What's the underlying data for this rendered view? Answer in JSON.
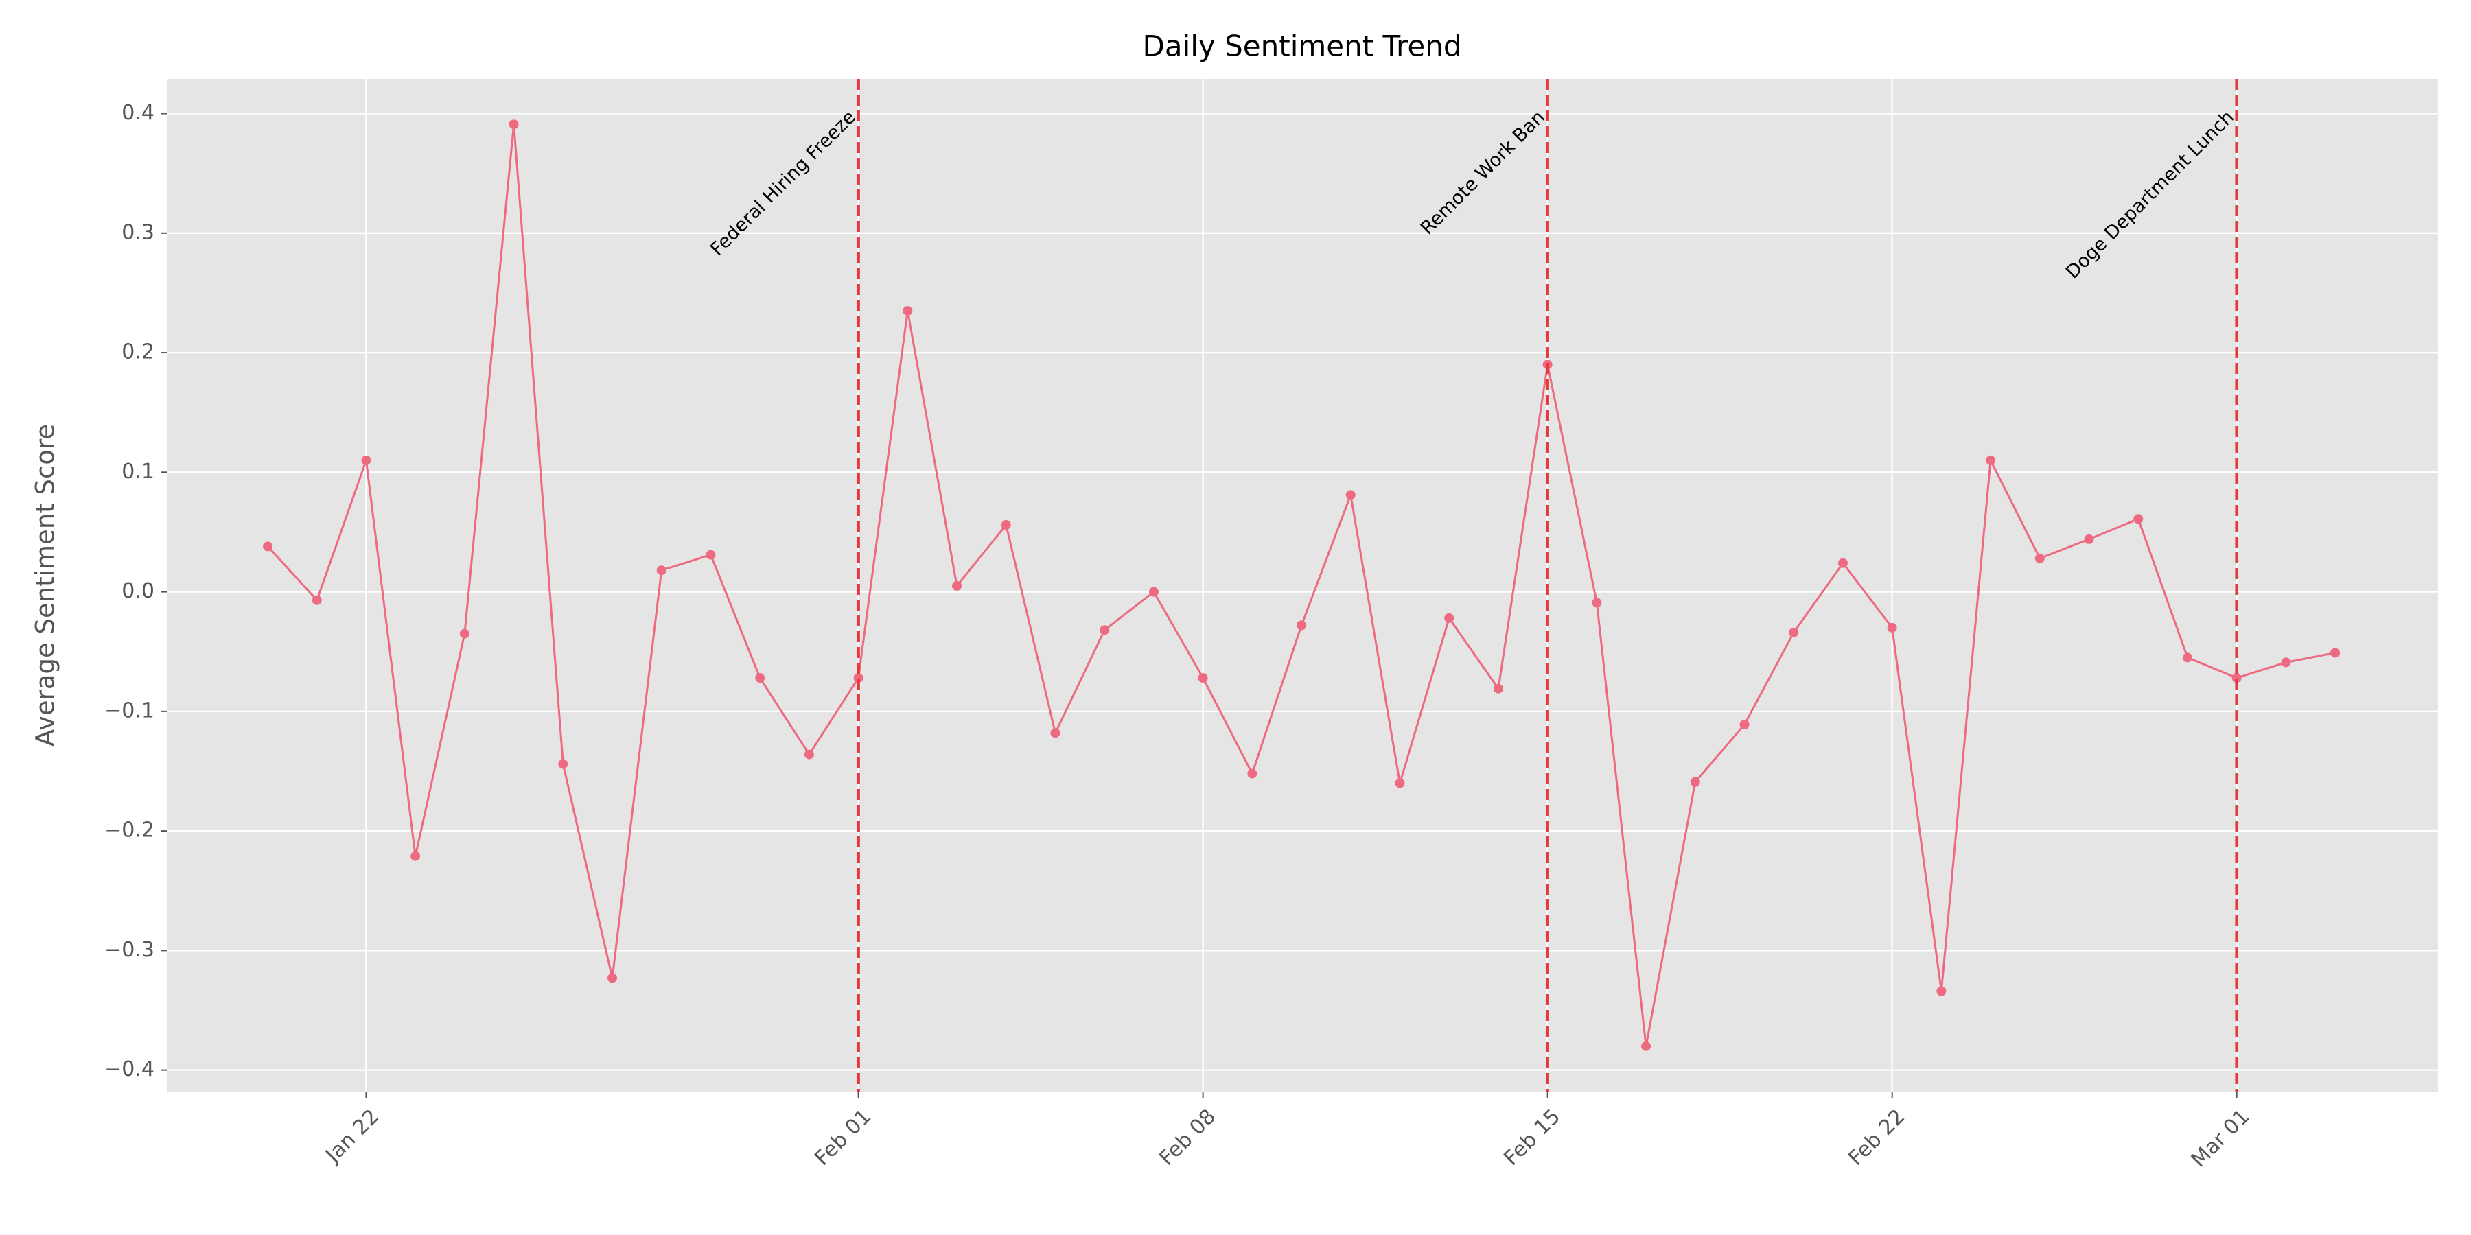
{
  "chart_data": {
    "type": "line",
    "title": "Daily Sentiment Trend",
    "y_label": "Average Sentiment Score",
    "categories": [
      null,
      null,
      "Jan 22",
      null,
      null,
      null,
      null,
      null,
      null,
      null,
      null,
      null,
      "Feb 01",
      null,
      null,
      null,
      null,
      null,
      null,
      "Feb 08",
      null,
      null,
      null,
      null,
      null,
      null,
      "Feb 15",
      null,
      null,
      null,
      null,
      null,
      null,
      "Feb 22",
      null,
      null,
      null,
      null,
      null,
      null,
      "Mar 01",
      null,
      null
    ],
    "series": [
      {
        "name": "Average Sentiment Score",
        "color": "#ee6a80",
        "values": [
          0.038,
          -0.007,
          0.11,
          -0.221,
          -0.035,
          0.391,
          -0.144,
          -0.323,
          0.018,
          0.031,
          -0.072,
          -0.136,
          -0.072,
          0.235,
          0.005,
          0.056,
          -0.118,
          -0.032,
          0.0,
          -0.072,
          -0.152,
          -0.028,
          0.081,
          -0.16,
          -0.022,
          -0.081,
          0.19,
          -0.009,
          -0.38,
          -0.159,
          -0.111,
          -0.034,
          0.024,
          -0.03,
          -0.334,
          0.11,
          0.028,
          0.044,
          0.061,
          -0.055,
          -0.072,
          -0.059,
          -0.051
        ]
      }
    ],
    "ylim": [
      -0.418,
      0.429
    ],
    "yticks": [
      {
        "value": -0.4,
        "label": "−0.4"
      },
      {
        "value": -0.3,
        "label": "−0.3"
      },
      {
        "value": -0.2,
        "label": "−0.2"
      },
      {
        "value": -0.1,
        "label": "−0.1"
      },
      {
        "value": 0,
        "label": "0.0"
      },
      0.1,
      0.2,
      0.3,
      0.4
    ],
    "grid": true,
    "events": [
      {
        "date": "Feb 01",
        "label": "Federal Hiring Freeze",
        "color": "#e8373a"
      },
      {
        "date": "Feb 15",
        "label": "Remote Work Ban",
        "color": "#e8373a"
      },
      {
        "date": "Mar 01",
        "label": "Doge Department Lunch",
        "color": "#e8373a"
      }
    ]
  }
}
